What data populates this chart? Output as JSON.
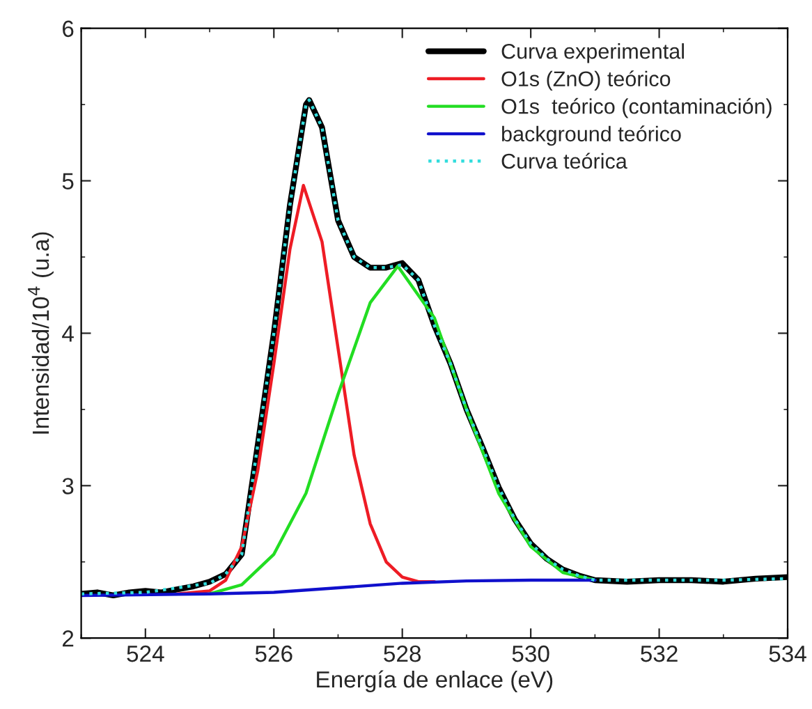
{
  "chart_data": {
    "type": "line",
    "xlabel": "Energía de enlace (eV)",
    "ylabel": "Intensidad/10$^{4}$ (u.a)",
    "xlim": [
      523,
      534
    ],
    "ylim": [
      2,
      6
    ],
    "xticks": [
      524,
      526,
      528,
      530,
      532,
      534
    ],
    "yticks": [
      2,
      3,
      4,
      5,
      6
    ],
    "grid": false,
    "legend": "top right",
    "marker": "none",
    "series": [
      {
        "name": "Curva experimental",
        "color": "#000000",
        "line_style": "solid",
        "x": [
          523,
          523.25,
          523.5,
          523.75,
          524,
          524.25,
          524.5,
          524.75,
          525,
          525.25,
          525.5,
          525.75,
          526,
          526.25,
          526.5,
          526.55,
          526.75,
          527,
          527.25,
          527.5,
          527.75,
          528,
          528.25,
          528.5,
          528.75,
          529,
          529.25,
          529.5,
          529.75,
          530,
          530.25,
          530.5,
          530.75,
          531,
          531.5,
          532,
          532.5,
          533,
          533.5,
          534
        ],
        "values": [
          2.29,
          2.3,
          2.28,
          2.3,
          2.31,
          2.3,
          2.32,
          2.34,
          2.37,
          2.42,
          2.55,
          3.27,
          4.0,
          4.84,
          5.5,
          5.53,
          5.35,
          4.74,
          4.5,
          4.43,
          4.43,
          4.46,
          4.35,
          4.05,
          3.8,
          3.5,
          3.25,
          2.99,
          2.78,
          2.62,
          2.52,
          2.45,
          2.41,
          2.38,
          2.37,
          2.38,
          2.38,
          2.37,
          2.39,
          2.4
        ]
      },
      {
        "name": "O1s (ZnO) teórico",
        "color": "#ee1c25",
        "line_style": "solid",
        "x": [
          524.5,
          525,
          525.25,
          525.5,
          525.75,
          526,
          526.25,
          526.46,
          526.75,
          527,
          527.25,
          527.5,
          527.75,
          528,
          528.25,
          528.5
        ],
        "values": [
          2.29,
          2.31,
          2.38,
          2.6,
          3.1,
          3.8,
          4.55,
          4.97,
          4.6,
          3.9,
          3.2,
          2.75,
          2.5,
          2.4,
          2.37,
          2.37
        ]
      },
      {
        "name": "O1s  teórico (contaminación)",
        "color": "#22dd22",
        "line_style": "solid",
        "x": [
          525,
          525.5,
          526,
          526.5,
          527,
          527.5,
          527.93,
          528.5,
          529,
          529.5,
          530,
          530.5,
          531
        ],
        "values": [
          2.29,
          2.35,
          2.55,
          2.95,
          3.6,
          4.2,
          4.44,
          4.1,
          3.5,
          2.95,
          2.6,
          2.43,
          2.38
        ]
      },
      {
        "name": "background teórico",
        "color": "#1010cc",
        "line_style": "solid",
        "x": [
          523,
          525,
          526,
          527,
          528,
          529,
          530,
          531
        ],
        "values": [
          2.28,
          2.29,
          2.3,
          2.33,
          2.36,
          2.375,
          2.38,
          2.38
        ]
      },
      {
        "name": "Curva teórica",
        "color": "#33dddd",
        "line_style": "dotted",
        "x": [
          523,
          524,
          525,
          525.25,
          525.5,
          525.75,
          526,
          526.25,
          526.5,
          526.55,
          526.75,
          527,
          527.25,
          527.5,
          527.75,
          528,
          528.25,
          528.5,
          528.75,
          529,
          529.25,
          529.5,
          529.75,
          530,
          530.25,
          530.5,
          530.75,
          531,
          532,
          533,
          534
        ],
        "values": [
          2.29,
          2.3,
          2.36,
          2.42,
          2.55,
          3.27,
          4.0,
          4.84,
          5.5,
          5.53,
          5.35,
          4.74,
          4.5,
          4.43,
          4.43,
          4.45,
          4.35,
          4.05,
          3.8,
          3.5,
          3.25,
          2.99,
          2.78,
          2.62,
          2.52,
          2.45,
          2.41,
          2.38,
          2.38,
          2.38,
          2.39
        ]
      }
    ]
  }
}
